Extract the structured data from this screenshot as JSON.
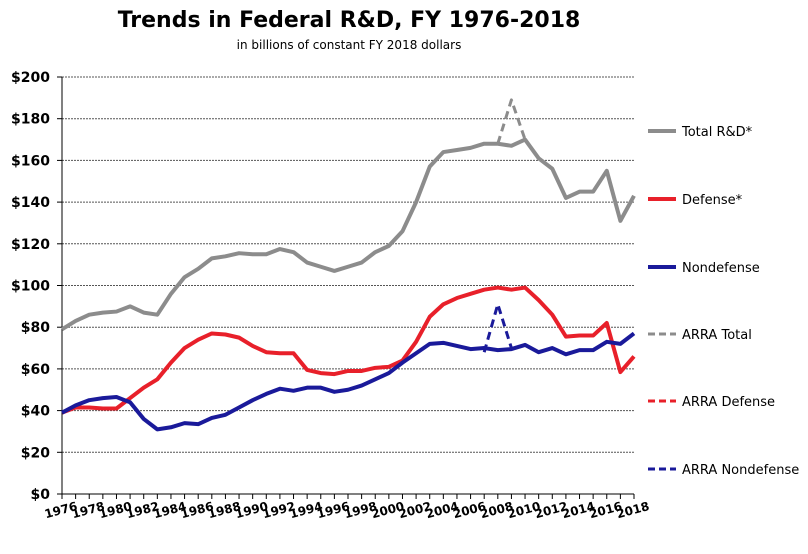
{
  "chart_data": {
    "type": "line",
    "title": "Trends in Federal R&D, FY 1976-2018",
    "subtitle": "in billions of constant FY 2018 dollars",
    "xlabel": "",
    "ylabel": "",
    "ylim": [
      0,
      200
    ],
    "yticks": [
      "$0",
      "$20",
      "$40",
      "$60",
      "$80",
      "$100",
      "$120",
      "$140",
      "$160",
      "$180",
      "$200"
    ],
    "xlim": [
      1976,
      2018
    ],
    "xticks": [
      "1976",
      "1978",
      "1980",
      "1982",
      "1984",
      "1986",
      "1988",
      "1990",
      "1992",
      "1994",
      "1996",
      "1998",
      "2000",
      "2002",
      "2004",
      "2006",
      "2008",
      "2010",
      "2012",
      "2014",
      "2016",
      "2018"
    ],
    "grid": true,
    "legend_position": "right",
    "x": [
      1976,
      1977,
      1978,
      1979,
      1980,
      1981,
      1982,
      1983,
      1984,
      1985,
      1986,
      1987,
      1988,
      1989,
      1990,
      1991,
      1992,
      1993,
      1994,
      1995,
      1996,
      1997,
      1998,
      1999,
      2000,
      2001,
      2002,
      2003,
      2004,
      2005,
      2006,
      2007,
      2008,
      2009,
      2010,
      2011,
      2012,
      2013,
      2014,
      2015,
      2016,
      2017,
      2018
    ],
    "series": [
      {
        "name": "Total R&D*",
        "color": "#8c8c8c",
        "dash": false,
        "values": [
          79,
          83,
          86,
          87,
          87.5,
          90,
          87,
          86,
          96,
          104,
          108,
          113,
          114,
          115.5,
          115,
          115,
          117.5,
          116,
          111,
          109,
          107,
          109,
          111,
          116,
          119,
          126,
          140,
          157,
          164,
          165,
          166,
          168,
          168,
          167,
          170,
          161,
          156,
          142,
          145,
          145,
          155,
          131,
          143
        ]
      },
      {
        "name": "Defense*",
        "color": "#e8202a",
        "dash": false,
        "values": [
          39,
          41.5,
          41.5,
          41,
          41,
          46,
          51,
          55,
          63,
          70,
          74,
          77,
          76.5,
          75,
          71,
          68,
          67.5,
          67.5,
          59.5,
          58,
          57.5,
          59,
          59,
          60.5,
          61,
          64,
          73,
          85,
          91,
          94,
          96,
          98,
          99,
          98,
          99,
          93,
          86,
          75.5,
          76,
          76,
          82,
          58.5,
          66
        ]
      },
      {
        "name": "Nondefense",
        "color": "#1a1a9a",
        "dash": false,
        "values": [
          39,
          42.5,
          45,
          46,
          46.5,
          44,
          36,
          31,
          32,
          34,
          33.5,
          36.5,
          38,
          41.5,
          45,
          48,
          50.5,
          49.5,
          51,
          51,
          49,
          50,
          52,
          55,
          58,
          63,
          67.5,
          72,
          72.5,
          71,
          69.5,
          70,
          69,
          69.5,
          71.5,
          68,
          70,
          67,
          69,
          69,
          73,
          72,
          77
        ]
      },
      {
        "name": "ARRA Total",
        "color": "#8c8c8c",
        "dash": true,
        "points": [
          [
            2008,
            168
          ],
          [
            2009,
            189
          ],
          [
            2010,
            170
          ]
        ]
      },
      {
        "name": "ARRA Defense",
        "color": "#e8202a",
        "dash": true,
        "points": []
      },
      {
        "name": "ARRA Nondefense",
        "color": "#1a1a9a",
        "dash": true,
        "points": [
          [
            2007,
            68
          ],
          [
            2008,
            91
          ],
          [
            2009,
            70
          ]
        ]
      }
    ]
  }
}
